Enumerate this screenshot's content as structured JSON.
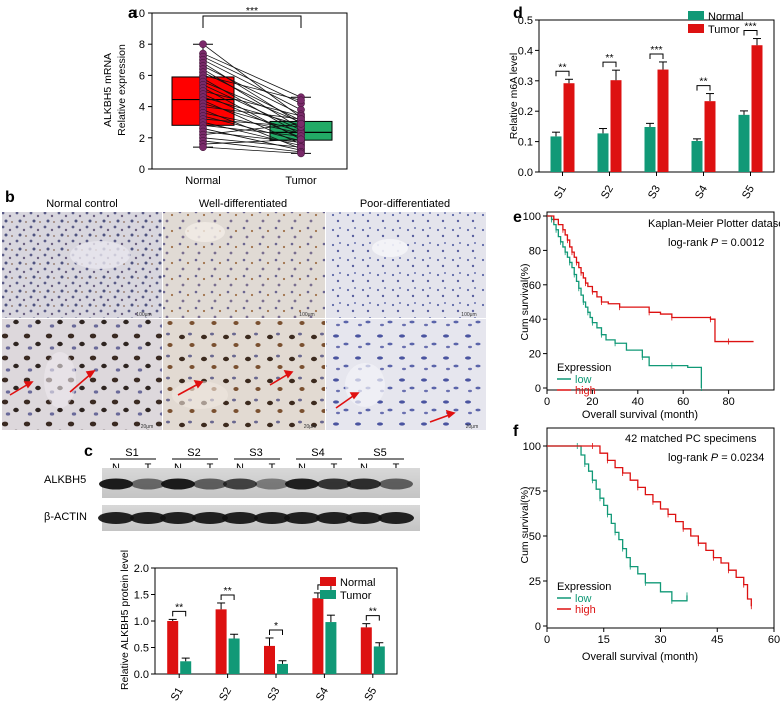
{
  "panels": {
    "a": {
      "letter": "a",
      "ylabel_line1": "ALKBH5 mRNA",
      "ylabel_line2": "Relative expression",
      "significance": "***",
      "chart_data": {
        "type": "box",
        "categories": [
          "Normal",
          "Tumor"
        ],
        "yticks": [
          0,
          2,
          4,
          6,
          8,
          10
        ],
        "ylim": [
          0,
          10
        ],
        "boxes": [
          {
            "name": "Normal",
            "q1": 2.8,
            "median": 4.45,
            "q3": 5.9,
            "min": 1.4,
            "max": 8.0,
            "color": "#ff0000"
          },
          {
            "name": "Tumor",
            "q1": 1.85,
            "median": 2.35,
            "q3": 3.05,
            "min": 1.0,
            "max": 4.6,
            "color": "#22aa66"
          }
        ],
        "pairs": [
          [
            8.0,
            3.3
          ],
          [
            7.4,
            4.6
          ],
          [
            7.2,
            4.2
          ],
          [
            7.0,
            3.8
          ],
          [
            6.8,
            2.9
          ],
          [
            6.6,
            3.5
          ],
          [
            6.4,
            2.6
          ],
          [
            6.2,
            3.1
          ],
          [
            6.0,
            4.4
          ],
          [
            5.8,
            2.2
          ],
          [
            5.6,
            3.0
          ],
          [
            5.4,
            2.5
          ],
          [
            5.2,
            1.9
          ],
          [
            5.0,
            3.4
          ],
          [
            4.8,
            2.0
          ],
          [
            4.6,
            2.8
          ],
          [
            4.4,
            1.6
          ],
          [
            4.2,
            2.4
          ],
          [
            4.0,
            3.2
          ],
          [
            3.8,
            1.3
          ],
          [
            3.6,
            2.3
          ],
          [
            3.4,
            1.8
          ],
          [
            3.2,
            2.7
          ],
          [
            3.0,
            1.5
          ],
          [
            2.8,
            2.1
          ],
          [
            2.6,
            1.2
          ],
          [
            2.4,
            1.7
          ],
          [
            2.2,
            2.9
          ],
          [
            2.0,
            1.4
          ],
          [
            1.8,
            1.1
          ],
          [
            1.6,
            1.9
          ],
          [
            1.4,
            1.0
          ]
        ]
      }
    },
    "b": {
      "letter": "b",
      "columns": [
        "Normal control",
        "Well-differentiated",
        "Poor-differentiated"
      ],
      "scale_top": "100μm",
      "scale_bottom": "20μm"
    },
    "c": {
      "letter": "c",
      "samples": [
        "S1",
        "S2",
        "S3",
        "S4",
        "S5"
      ],
      "lane_n": "N",
      "lane_t": "T",
      "blot_labels": [
        "ALKBH5",
        "β-ACTIN"
      ],
      "ylabel": "Relative ALKBH5 protein level",
      "chart_data": {
        "type": "bar",
        "categories": [
          "S1",
          "S2",
          "S3",
          "S4",
          "S5"
        ],
        "ylim": [
          0,
          2.0
        ],
        "yticks": [
          "0.0",
          "0.5",
          "1.0",
          "1.5",
          "2.0"
        ],
        "legend": "top-right",
        "series": [
          {
            "name": "Normal",
            "color": "#dd1111",
            "values": [
              1.0,
              1.22,
              0.53,
              1.43,
              0.88
            ],
            "errors": [
              0.03,
              0.12,
              0.15,
              0.1,
              0.07
            ]
          },
          {
            "name": "Tumor",
            "color": "#119977",
            "values": [
              0.24,
              0.67,
              0.19,
              0.98,
              0.52
            ],
            "errors": [
              0.06,
              0.08,
              0.06,
              0.13,
              0.07
            ]
          }
        ],
        "significance": [
          "**",
          "**",
          "*",
          "**",
          "**"
        ]
      }
    },
    "d": {
      "letter": "d",
      "ylabel": "Relative m6A level",
      "chart_data": {
        "type": "bar",
        "categories": [
          "S1",
          "S2",
          "S3",
          "S4",
          "S5"
        ],
        "ylim": [
          0,
          0.5
        ],
        "yticks": [
          "0.0",
          "0.1",
          "0.2",
          "0.3",
          "0.4",
          "0.5"
        ],
        "legend": "top-right",
        "series": [
          {
            "name": "Normal",
            "color": "#119977",
            "values": [
              0.117,
              0.127,
              0.148,
              0.102,
              0.188
            ],
            "errors": [
              0.014,
              0.016,
              0.012,
              0.007,
              0.013
            ]
          },
          {
            "name": "Tumor",
            "color": "#dd1111",
            "values": [
              0.292,
              0.302,
              0.337,
              0.233,
              0.417
            ],
            "errors": [
              0.013,
              0.033,
              0.025,
              0.025,
              0.022
            ]
          }
        ],
        "significance": [
          "**",
          "**",
          "***",
          "**",
          "***"
        ]
      }
    },
    "e": {
      "letter": "e",
      "ylabel": "Cum survival(%)",
      "xlabel": "Overall survival (month)",
      "title": "Kaplan-Meier Plotter dataset",
      "pvalue_prefix": "log-rank ",
      "pvalue_p": "P",
      "pvalue_suffix": " = 0.0012",
      "legend_title": "Expression",
      "chart_data": {
        "type": "line",
        "xlim": [
          0,
          100
        ],
        "ylim": [
          0,
          100
        ],
        "xticks": [
          0,
          20,
          40,
          60,
          80
        ],
        "yticks": [
          0,
          20,
          40,
          60,
          80,
          100
        ],
        "series": [
          {
            "name": "low",
            "color": "#119977",
            "points": [
              [
                0,
                100
              ],
              [
                2,
                98
              ],
              [
                3,
                95
              ],
              [
                4,
                92
              ],
              [
                5,
                88
              ],
              [
                6,
                85
              ],
              [
                7,
                82
              ],
              [
                8,
                79
              ],
              [
                9,
                76
              ],
              [
                10,
                73
              ],
              [
                11,
                70
              ],
              [
                12,
                66
              ],
              [
                13,
                62
              ],
              [
                14,
                58
              ],
              [
                15,
                54
              ],
              [
                16,
                50
              ],
              [
                17,
                47
              ],
              [
                18,
                44
              ],
              [
                19,
                41
              ],
              [
                20,
                38
              ],
              [
                22,
                35
              ],
              [
                24,
                31
              ],
              [
                26,
                28
              ],
              [
                30,
                26
              ],
              [
                35,
                22
              ],
              [
                42,
                18
              ],
              [
                45,
                13
              ],
              [
                55,
                13
              ],
              [
                62,
                12
              ],
              [
                68,
                0
              ]
            ]
          },
          {
            "name": "high",
            "color": "#dd1111",
            "points": [
              [
                0,
                100
              ],
              [
                3,
                98
              ],
              [
                5,
                95
              ],
              [
                7,
                92
              ],
              [
                8,
                89
              ],
              [
                9,
                86
              ],
              [
                10,
                82
              ],
              [
                11,
                79
              ],
              [
                12,
                76
              ],
              [
                13,
                73
              ],
              [
                14,
                70
              ],
              [
                15,
                67
              ],
              [
                16,
                64
              ],
              [
                17,
                61
              ],
              [
                18,
                59
              ],
              [
                20,
                56
              ],
              [
                22,
                53
              ],
              [
                24,
                50
              ],
              [
                27,
                49
              ],
              [
                32,
                47
              ],
              [
                40,
                47
              ],
              [
                45,
                44
              ],
              [
                50,
                43
              ],
              [
                55,
                41
              ],
              [
                65,
                41
              ],
              [
                72,
                40
              ],
              [
                74,
                27
              ],
              [
                80,
                27
              ],
              [
                91,
                27
              ]
            ]
          }
        ]
      }
    },
    "f": {
      "letter": "f",
      "ylabel": "Cum survival(%)",
      "xlabel": "Overall survival (month)",
      "title": "42 matched PC specimens",
      "pvalue_prefix": "log-rank ",
      "pvalue_p": "P",
      "pvalue_suffix": " = 0.0234",
      "legend_title": "Expression",
      "chart_data": {
        "type": "line",
        "xlim": [
          0,
          60
        ],
        "ylim": [
          0,
          100
        ],
        "xticks": [
          0,
          15,
          30,
          45,
          60
        ],
        "yticks": [
          0,
          25,
          50,
          75,
          100
        ],
        "series": [
          {
            "name": "low",
            "color": "#119977",
            "points": [
              [
                0,
                100
              ],
              [
                8,
                100
              ],
              [
                9,
                95
              ],
              [
                10,
                90
              ],
              [
                11,
                86
              ],
              [
                12,
                81
              ],
              [
                13,
                76
              ],
              [
                14,
                71
              ],
              [
                15,
                67
              ],
              [
                16,
                62
              ],
              [
                17,
                57
              ],
              [
                18,
                52
              ],
              [
                19,
                48
              ],
              [
                20,
                43
              ],
              [
                21,
                38
              ],
              [
                22,
                33
              ],
              [
                24,
                29
              ],
              [
                26,
                24
              ],
              [
                30,
                19
              ],
              [
                33,
                14
              ],
              [
                36,
                14
              ],
              [
                37,
                17
              ]
            ]
          },
          {
            "name": "high",
            "color": "#dd1111",
            "points": [
              [
                0,
                100
              ],
              [
                12,
                100
              ],
              [
                14,
                96
              ],
              [
                16,
                92
              ],
              [
                18,
                88
              ],
              [
                20,
                85
              ],
              [
                22,
                81
              ],
              [
                24,
                77
              ],
              [
                26,
                73
              ],
              [
                28,
                69
              ],
              [
                30,
                65
              ],
              [
                32,
                62
              ],
              [
                34,
                58
              ],
              [
                36,
                54
              ],
              [
                38,
                50
              ],
              [
                40,
                46
              ],
              [
                42,
                42
              ],
              [
                44,
                38
              ],
              [
                46,
                35
              ],
              [
                48,
                31
              ],
              [
                50,
                27
              ],
              [
                52,
                23
              ],
              [
                53,
                15
              ],
              [
                54,
                11
              ]
            ]
          }
        ]
      }
    }
  }
}
